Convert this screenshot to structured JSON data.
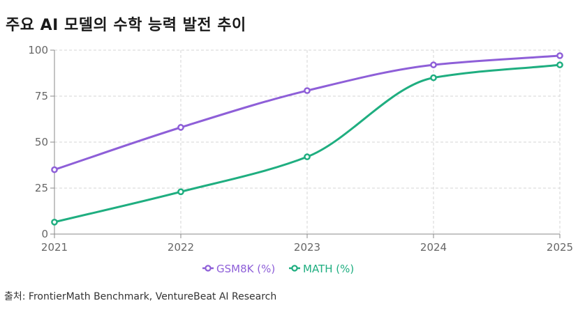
{
  "title": "주요 AI 모델의 수학 능력 발전 추이",
  "source": "출처: FrontierMath Benchmark, VentureBeat AI Research",
  "colors": {
    "gsm8k": "#8e5fd8",
    "math": "#1fae80",
    "grid": "#d4d4d4",
    "axis": "#888888"
  },
  "chart_data": {
    "type": "line",
    "title": "주요 AI 모델의 수학 능력 발전 추이",
    "x": [
      "2021",
      "2022",
      "2023",
      "2024",
      "2025"
    ],
    "ylim": [
      0,
      100
    ],
    "yticks": [
      0,
      25,
      50,
      75,
      100
    ],
    "grid": true,
    "legend_position": "bottom",
    "series": [
      {
        "name": "GSM8K (%)",
        "values": [
          35,
          58,
          78,
          92,
          97
        ]
      },
      {
        "name": "MATH (%)",
        "values": [
          6.5,
          23,
          42,
          85,
          92
        ]
      }
    ]
  }
}
